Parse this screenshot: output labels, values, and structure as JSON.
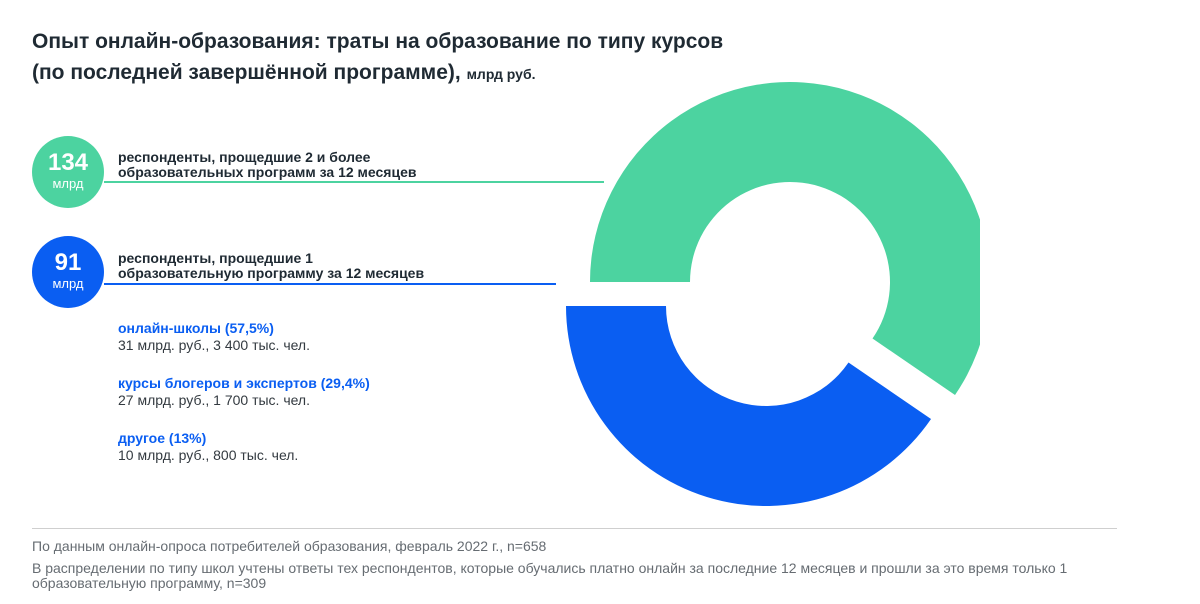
{
  "chart_data": {
    "type": "pie",
    "style": "donut",
    "title": "Опыт онлайн-образования: траты на образование по типу курсов",
    "title_line2": "(по последней завершённой программе),",
    "unit": "млрд руб.",
    "categories": [
      "респонденты, прощедшие 2 и более образовательных программ за 12 месяцев",
      "респонденты, прощедшие 1 образовательную программу за 12 месяцев"
    ],
    "values": [
      134,
      91
    ],
    "colors": [
      "#4cd3a0",
      "#0a5ef2"
    ]
  },
  "bubbles": [
    {
      "value": "134",
      "unit": "млрд"
    },
    {
      "value": "91",
      "unit": "млрд"
    }
  ],
  "labels": {
    "group1_line1": "респонденты, прощедшие 2 и более",
    "group1_line2": "образовательных программ за 12 месяцев",
    "group2_line1": "респонденты, прощедшие 1",
    "group2_line2": "образовательную программу за 12 месяцев"
  },
  "breakdown": [
    {
      "title": "онлайн-школы (57,5%)",
      "detail": "31 млрд. руб., 3 400 тыс. чел."
    },
    {
      "title": "курсы блогеров и экспертов (29,4%)",
      "detail": "27 млрд. руб., 1 700 тыс. чел."
    },
    {
      "title": "другое (13%)",
      "detail": "10 млрд. руб., 800 тыс. чел."
    }
  ],
  "notes": {
    "source": "По данным онлайн-опроса потребителей образования, февраль 2022 г., n=658",
    "method": "В распределении по типу школ учтены ответы тех респондентов, которые обучались платно онлайн за последние 12 месяцев и прошли за это время только 1 образовательную программу, n=309"
  }
}
